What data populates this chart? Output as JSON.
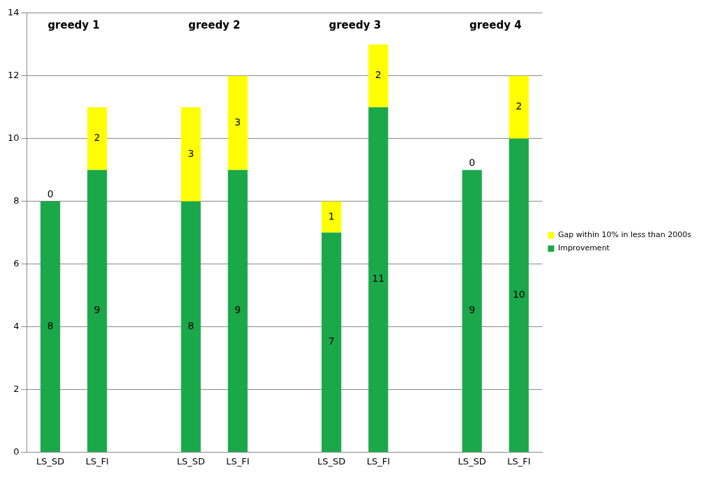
{
  "chart_data": {
    "type": "bar",
    "stacked": true,
    "categories": [
      "LS_SD",
      "LS_FI",
      null,
      "LS_SD",
      "LS_FI",
      null,
      "LS_SD",
      "LS_FI",
      null,
      "LS_SD",
      "LS_FI"
    ],
    "series": [
      {
        "name": "Improvement",
        "color": "#1aa84a",
        "values": [
          8,
          9,
          null,
          8,
          9,
          null,
          7,
          11,
          null,
          9,
          10
        ]
      },
      {
        "name": "Gap within 10% in less than 2000s",
        "color": "#ffff00",
        "values": [
          0,
          2,
          null,
          3,
          3,
          null,
          1,
          2,
          null,
          0,
          2
        ]
      }
    ],
    "ylim": [
      0,
      14
    ],
    "yticks": [
      0,
      2,
      4,
      6,
      8,
      10,
      12,
      14
    ],
    "grid": "y",
    "legend": "right",
    "data_labels": true,
    "annotations": [
      "greedy 1",
      "greedy 2",
      "greedy 3",
      "greedy 4"
    ]
  }
}
